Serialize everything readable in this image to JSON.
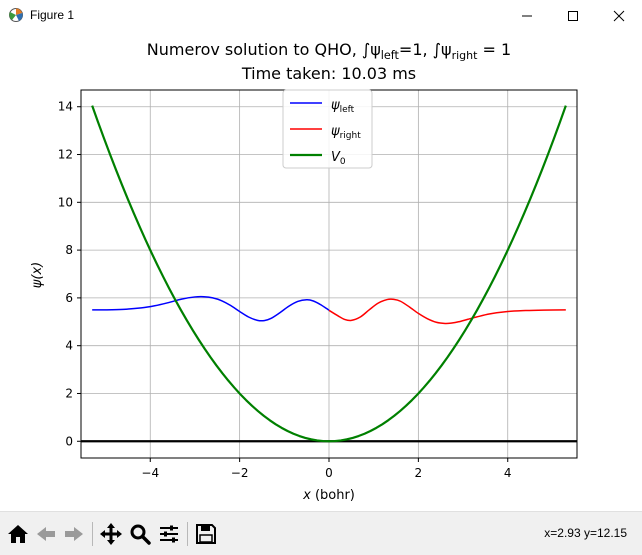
{
  "window": {
    "title": "Figure 1",
    "buttons": [
      "minimize",
      "maximize",
      "close"
    ]
  },
  "toolbar": {
    "icons": [
      "home-icon",
      "back-icon",
      "forward-icon",
      "pan-icon",
      "zoom-icon",
      "subplots-icon",
      "save-icon"
    ],
    "coords_readout": "x=2.93 y=12.15"
  },
  "chart_data": {
    "type": "line",
    "title_line1_prefix": "Numerov solution to QHO, ∫ψ",
    "title_line1_sub1": "left",
    "title_line1_mid": "=1, ∫ψ",
    "title_line1_sub2": "right",
    "title_line1_suffix": " = 1",
    "title_line2": "Time taken: 10.03 ms",
    "xlabel_var": "x",
    "xlabel_unit": " (bohr)",
    "ylabel": "ψ(x)",
    "xlim": [
      -5.55,
      5.55
    ],
    "ylim": [
      -0.7,
      14.7
    ],
    "xticks": [
      -4,
      -2,
      0,
      2,
      4
    ],
    "xtick_labels": [
      "−4",
      "−2",
      "0",
      "2",
      "4"
    ],
    "yticks": [
      0,
      2,
      4,
      6,
      8,
      10,
      12,
      14
    ],
    "ytick_labels": [
      "0",
      "2",
      "4",
      "6",
      "8",
      "10",
      "12",
      "14"
    ],
    "grid": true,
    "legend_position": "top-center",
    "zero_line": {
      "y": 0,
      "color": "#000000"
    },
    "series": [
      {
        "name_base": "ψ",
        "name_sub": "left",
        "color": "#0000ff",
        "line_width": 1.5,
        "x": [
          -5.3,
          -5.0,
          -4.6,
          -4.2,
          -3.9,
          -3.6,
          -3.3,
          -3.0,
          -2.8,
          -2.6,
          -2.4,
          -2.2,
          -2.0,
          -1.8,
          -1.6,
          -1.45,
          -1.3,
          -1.1,
          -0.9,
          -0.7,
          -0.5,
          -0.35,
          -0.2,
          -0.05,
          0
        ],
        "y": [
          5.5,
          5.5,
          5.52,
          5.58,
          5.67,
          5.8,
          5.95,
          6.04,
          6.05,
          6.0,
          5.88,
          5.68,
          5.43,
          5.2,
          5.06,
          5.05,
          5.14,
          5.38,
          5.65,
          5.85,
          5.92,
          5.87,
          5.73,
          5.55,
          5.48
        ]
      },
      {
        "name_base": "ψ",
        "name_sub": "right",
        "color": "#ff0000",
        "line_width": 1.5,
        "x": [
          0,
          0.2,
          0.35,
          0.5,
          0.7,
          0.9,
          1.1,
          1.3,
          1.45,
          1.6,
          1.8,
          2.0,
          2.2,
          2.4,
          2.6,
          2.75,
          2.9,
          3.1,
          3.3,
          3.6,
          4.0,
          4.4,
          4.8,
          5.3
        ],
        "y": [
          5.48,
          5.25,
          5.1,
          5.06,
          5.2,
          5.5,
          5.78,
          5.93,
          5.94,
          5.86,
          5.62,
          5.35,
          5.13,
          4.98,
          4.93,
          4.95,
          5.0,
          5.1,
          5.2,
          5.33,
          5.43,
          5.47,
          5.49,
          5.5
        ]
      },
      {
        "name_base": "V",
        "name_sub": "0",
        "color": "#008000",
        "line_width": 2.2,
        "function": "0.5*x^2",
        "x_range": [
          -5.3,
          5.3
        ]
      }
    ]
  }
}
